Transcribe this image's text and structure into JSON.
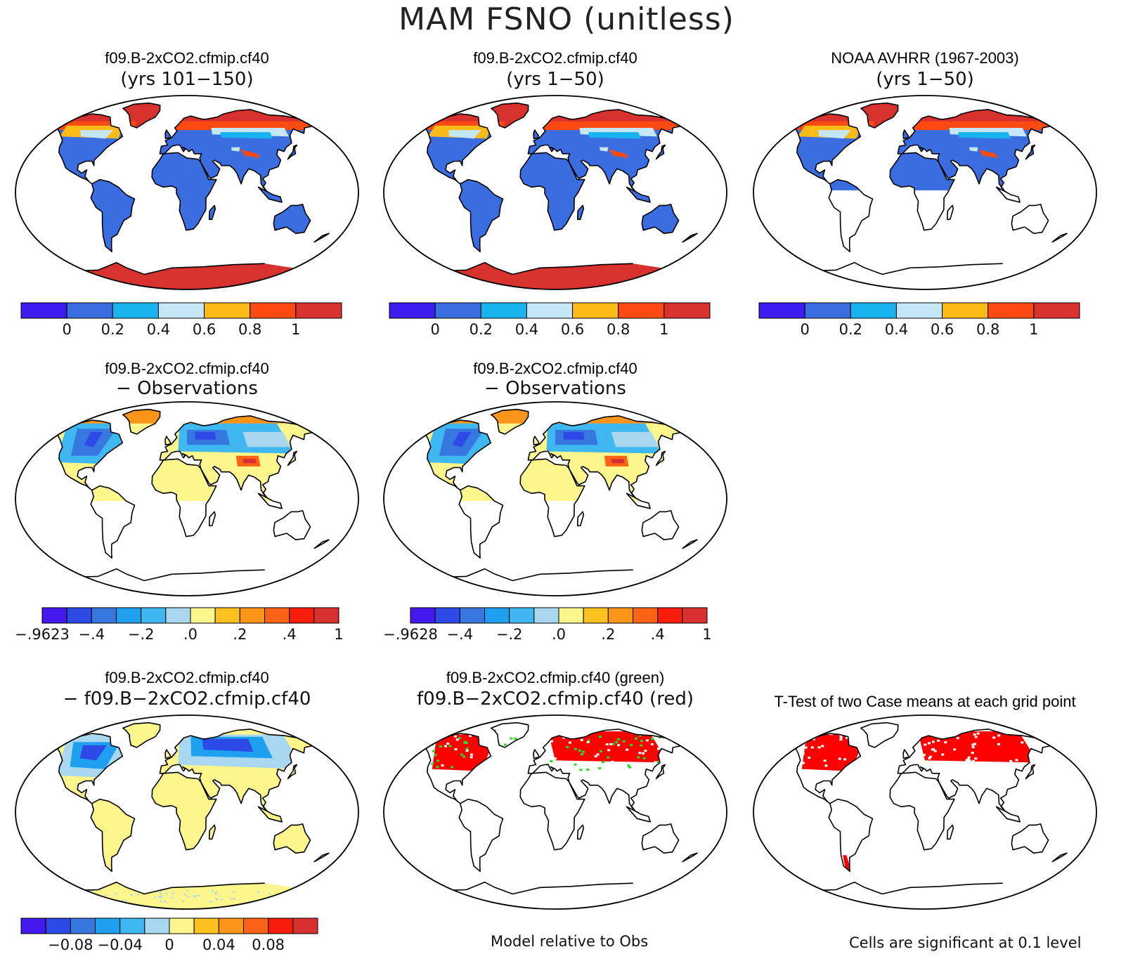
{
  "title": "MAM FSNO (unitless)",
  "colors": {
    "scale1": [
      "#3d1cf0",
      "#3a6ee0",
      "#19b4f0",
      "#c4e6f5",
      "#fdbb18",
      "#fd4a12",
      "#d8322f"
    ],
    "scale2": [
      "#4419f0",
      "#2e4ae6",
      "#3677e0",
      "#1e9ff0",
      "#3fb7f1",
      "#a9d7ef",
      "#fdf68c",
      "#fdc11f",
      "#fd951a",
      "#fb6414",
      "#f71c0c",
      "#d8302f"
    ],
    "scale3": [
      "#4419f0",
      "#2e4ae6",
      "#3677e0",
      "#1e9ff0",
      "#3fb7f1",
      "#a9d7ef",
      "#fdf68c",
      "#fdc11f",
      "#fd951a",
      "#fb6414",
      "#f71c0c",
      "#d8302f"
    ]
  },
  "panels": [
    {
      "id": "case1",
      "line1": "f09.B-2xCO2.cfmip.cf40",
      "line2": "(yrs 101−150)",
      "colorbar": {
        "scale": "scale1",
        "ticks": [
          {
            "b": 1,
            "t": "0"
          },
          {
            "b": 2,
            "t": "0.2"
          },
          {
            "b": 3,
            "t": "0.4"
          },
          {
            "b": 4,
            "t": "0.6"
          },
          {
            "b": 5,
            "t": "0.8"
          },
          {
            "b": 6,
            "t": "1"
          }
        ]
      }
    },
    {
      "id": "case2",
      "line1": "f09.B-2xCO2.cfmip.cf40",
      "line2": "(yrs 1−50)",
      "colorbar": {
        "scale": "scale1",
        "ticks": [
          {
            "b": 1,
            "t": "0"
          },
          {
            "b": 2,
            "t": "0.2"
          },
          {
            "b": 3,
            "t": "0.4"
          },
          {
            "b": 4,
            "t": "0.6"
          },
          {
            "b": 5,
            "t": "0.8"
          },
          {
            "b": 6,
            "t": "1"
          }
        ]
      }
    },
    {
      "id": "obs",
      "line1": "NOAA AVHRR (1967-2003)",
      "line2": "(yrs 1−50)",
      "colorbar": {
        "scale": "scale1",
        "ticks": [
          {
            "b": 1,
            "t": "0"
          },
          {
            "b": 2,
            "t": "0.2"
          },
          {
            "b": 3,
            "t": "0.4"
          },
          {
            "b": 4,
            "t": "0.6"
          },
          {
            "b": 5,
            "t": "0.8"
          },
          {
            "b": 6,
            "t": "1"
          }
        ]
      }
    },
    {
      "id": "diff1",
      "line1": "f09.B-2xCO2.cfmip.cf40",
      "line2": "− Observations",
      "colorbar": {
        "scale": "scale2",
        "ticks": [
          {
            "b": 0,
            "t": "−.9623"
          },
          {
            "b": 2,
            "t": "−.4"
          },
          {
            "b": 4,
            "t": "−.2"
          },
          {
            "b": 6,
            "t": ".0"
          },
          {
            "b": 8,
            "t": ".2"
          },
          {
            "b": 10,
            "t": ".4"
          },
          {
            "b": 12,
            "t": "1"
          }
        ]
      }
    },
    {
      "id": "diff2",
      "line1": "f09.B-2xCO2.cfmip.cf40",
      "line2": "− Observations",
      "colorbar": {
        "scale": "scale2",
        "ticks": [
          {
            "b": 0,
            "t": "−.9628"
          },
          {
            "b": 2,
            "t": "−.4"
          },
          {
            "b": 4,
            "t": "−.2"
          },
          {
            "b": 6,
            "t": ".0"
          },
          {
            "b": 8,
            "t": ".2"
          },
          {
            "b": 10,
            "t": ".4"
          },
          {
            "b": 12,
            "t": "1"
          }
        ]
      }
    },
    {
      "id": "casediff",
      "line1": "f09.B-2xCO2.cfmip.cf40",
      "line2": "− f09.B−2xCO2.cfmip.cf40",
      "colorbar": {
        "scale": "scale3",
        "ticks": [
          {
            "b": 2,
            "t": "−0.08"
          },
          {
            "b": 4,
            "t": "−0.04"
          },
          {
            "b": 6,
            "t": "0"
          },
          {
            "b": 8,
            "t": "0.04"
          },
          {
            "b": 10,
            "t": "0.08"
          }
        ]
      }
    },
    {
      "id": "rel",
      "line1": "f09.B-2xCO2.cfmip.cf40 (green)",
      "line2": "f09.B−2xCO2.cfmip.cf40 (red)",
      "footnote": "Model relative to Obs"
    },
    {
      "id": "ttest",
      "line1": "T-Test of two Case means at each grid point",
      "footnote": "Cells are significant at 0.1 level"
    }
  ]
}
